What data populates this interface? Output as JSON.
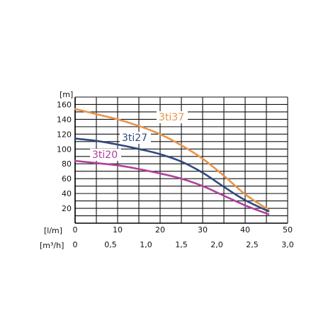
{
  "chart_data": {
    "type": "line",
    "y_unit_label": "[m]",
    "x_unit_label": "[l/m]",
    "x2_unit_label": "[m³/h]",
    "y_ticks": [
      "20",
      "40",
      "60",
      "80",
      "100",
      "120",
      "140",
      "160"
    ],
    "x_ticks": [
      "0",
      "10",
      "20",
      "30",
      "40",
      "50"
    ],
    "x2_ticks": [
      "0",
      "0,5",
      "1,0",
      "1,5",
      "2,0",
      "2,5",
      "3,0"
    ],
    "xlim": [
      0,
      50
    ],
    "ylim": [
      0,
      170
    ],
    "grid": true,
    "series": [
      {
        "name": "3ti37",
        "color": "#e8944a",
        "x": [
          0,
          5,
          10,
          15,
          20,
          25,
          30,
          35,
          40,
          45.5
        ],
        "y": [
          154,
          147,
          140,
          131,
          120,
          105,
          87,
          64,
          39,
          18
        ]
      },
      {
        "name": "3ti27",
        "color": "#2e4a7d",
        "x": [
          0,
          5,
          10,
          15,
          20,
          25,
          30,
          35,
          40,
          45.5
        ],
        "y": [
          114,
          111,
          106,
          100,
          93,
          83,
          68,
          49,
          31,
          16
        ]
      },
      {
        "name": "3ti20",
        "color": "#b0409a",
        "x": [
          0,
          5,
          10,
          15,
          20,
          25,
          30,
          35,
          40,
          45.5
        ],
        "y": [
          84,
          81,
          78,
          73,
          67,
          60,
          50,
          37,
          24,
          12
        ]
      }
    ]
  }
}
